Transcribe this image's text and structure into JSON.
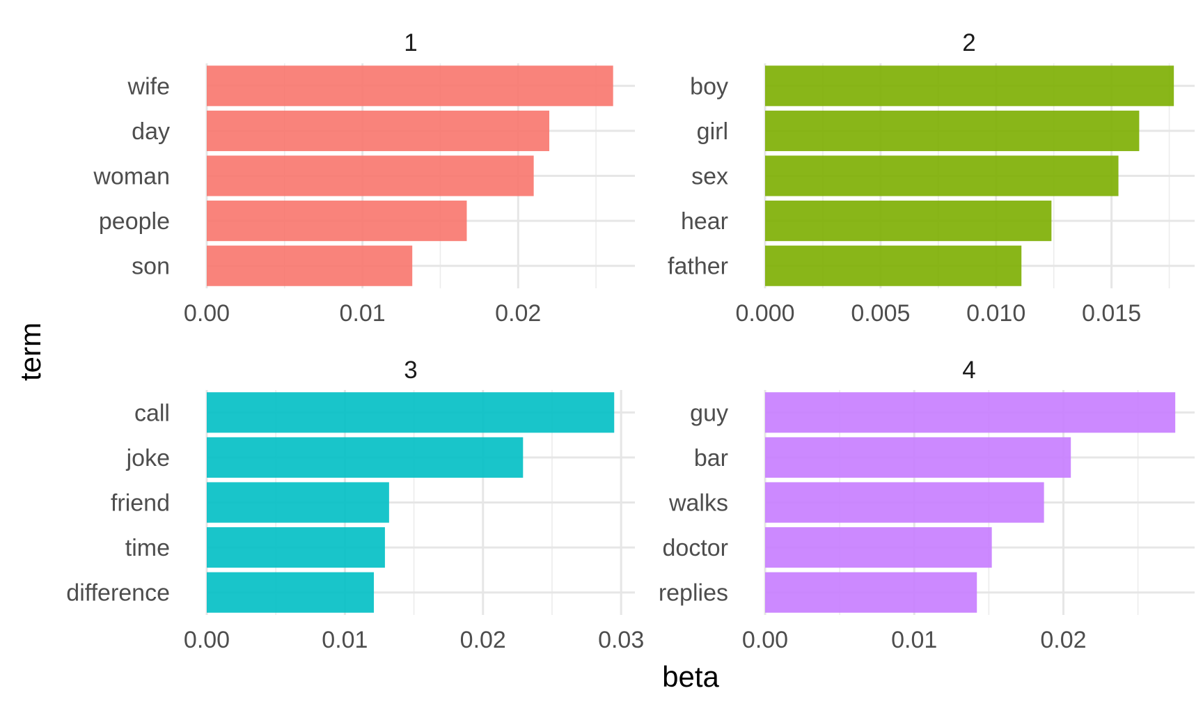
{
  "chart_data": {
    "type": "bar",
    "orientation": "horizontal",
    "xlabel": "beta",
    "ylabel": "term",
    "grid": true,
    "legend": "none",
    "facets": [
      {
        "title": "1",
        "color": "#F8766D",
        "categories": [
          "wife",
          "day",
          "woman",
          "people",
          "son"
        ],
        "values": [
          0.0261,
          0.022,
          0.021,
          0.0167,
          0.0132
        ],
        "xlim": [
          0,
          0.0275
        ],
        "major_ticks": [
          0,
          0.01,
          0.02
        ],
        "tick_labels": [
          "0.00",
          "0.01",
          "0.02"
        ],
        "minor_ticks": [
          0.005,
          0.015,
          0.025
        ]
      },
      {
        "title": "2",
        "color": "#7CAE00",
        "categories": [
          "boy",
          "girl",
          "sex",
          "hear",
          "father"
        ],
        "values": [
          0.0177,
          0.0162,
          0.0153,
          0.0124,
          0.0111
        ],
        "xlim": [
          0,
          0.0186
        ],
        "major_ticks": [
          0,
          0.005,
          0.01,
          0.015
        ],
        "tick_labels": [
          "0.000",
          "0.005",
          "0.010",
          "0.015"
        ],
        "minor_ticks": [
          0.0025,
          0.0075,
          0.0125,
          0.0175
        ]
      },
      {
        "title": "3",
        "color": "#00BFC4",
        "categories": [
          "call",
          "joke",
          "friend",
          "time",
          "difference"
        ],
        "values": [
          0.0295,
          0.0229,
          0.0132,
          0.0129,
          0.0121
        ],
        "xlim": [
          0,
          0.031
        ],
        "major_ticks": [
          0,
          0.01,
          0.02,
          0.03
        ],
        "tick_labels": [
          "0.00",
          "0.01",
          "0.02",
          "0.03"
        ],
        "minor_ticks": [
          0.005,
          0.015,
          0.025
        ]
      },
      {
        "title": "4",
        "color": "#C77CFF",
        "categories": [
          "guy",
          "bar",
          "walks",
          "doctor",
          "replies"
        ],
        "values": [
          0.0275,
          0.0205,
          0.0187,
          0.0152,
          0.0142
        ],
        "xlim": [
          0,
          0.0288
        ],
        "major_ticks": [
          0,
          0.01,
          0.02
        ],
        "tick_labels": [
          "0.00",
          "0.01",
          "0.02"
        ],
        "minor_ticks": [
          0.005,
          0.015,
          0.025
        ]
      }
    ]
  }
}
